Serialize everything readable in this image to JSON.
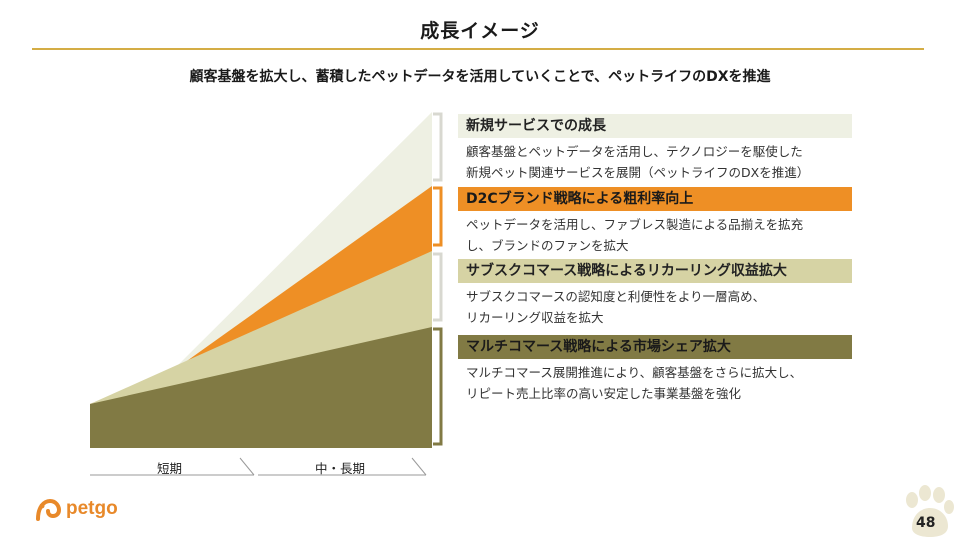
{
  "title": "成長イメージ",
  "subtitle": "顧客基盤を拡大し、蓄積したペットデータを活用していくことで、ペットライフのDXを推進",
  "sections": [
    {
      "heading": "新規サービスでの成長",
      "desc1": "顧客基盤とペットデータを活用し、テクノロジーを駆使した",
      "desc2": "新規ペット関連サービスを展開（ペットライフのDXを推進）"
    },
    {
      "heading": "D2Cブランド戦略による粗利率向上",
      "desc1": "ペットデータを活用し、ファブレス製造による品揃えを拡充",
      "desc2": "し、ブランドのファンを拡大"
    },
    {
      "heading": "サブスクコマース戦略によるリカーリング収益拡大",
      "desc1": "サブスクコマースの認知度と利便性をより一層高め、",
      "desc2": "リカーリング収益を拡大"
    },
    {
      "heading": "マルチコマース戦略による市場シェア拡大",
      "desc1": "マルチコマース展開推進により、顧客基盤をさらに拡大し、",
      "desc2": "リピート売上比率の高い安定した事業基盤を強化"
    }
  ],
  "axis": {
    "short": "短期",
    "long": "中・長期"
  },
  "logo": "petgo",
  "page": "48",
  "colors": {
    "gold": "#d4ad45",
    "layer_new": "#eef0e3",
    "layer_d2c": "#ee8f25",
    "layer_subsc": "#d6d3a4",
    "layer_multi": "#817a44"
  }
}
